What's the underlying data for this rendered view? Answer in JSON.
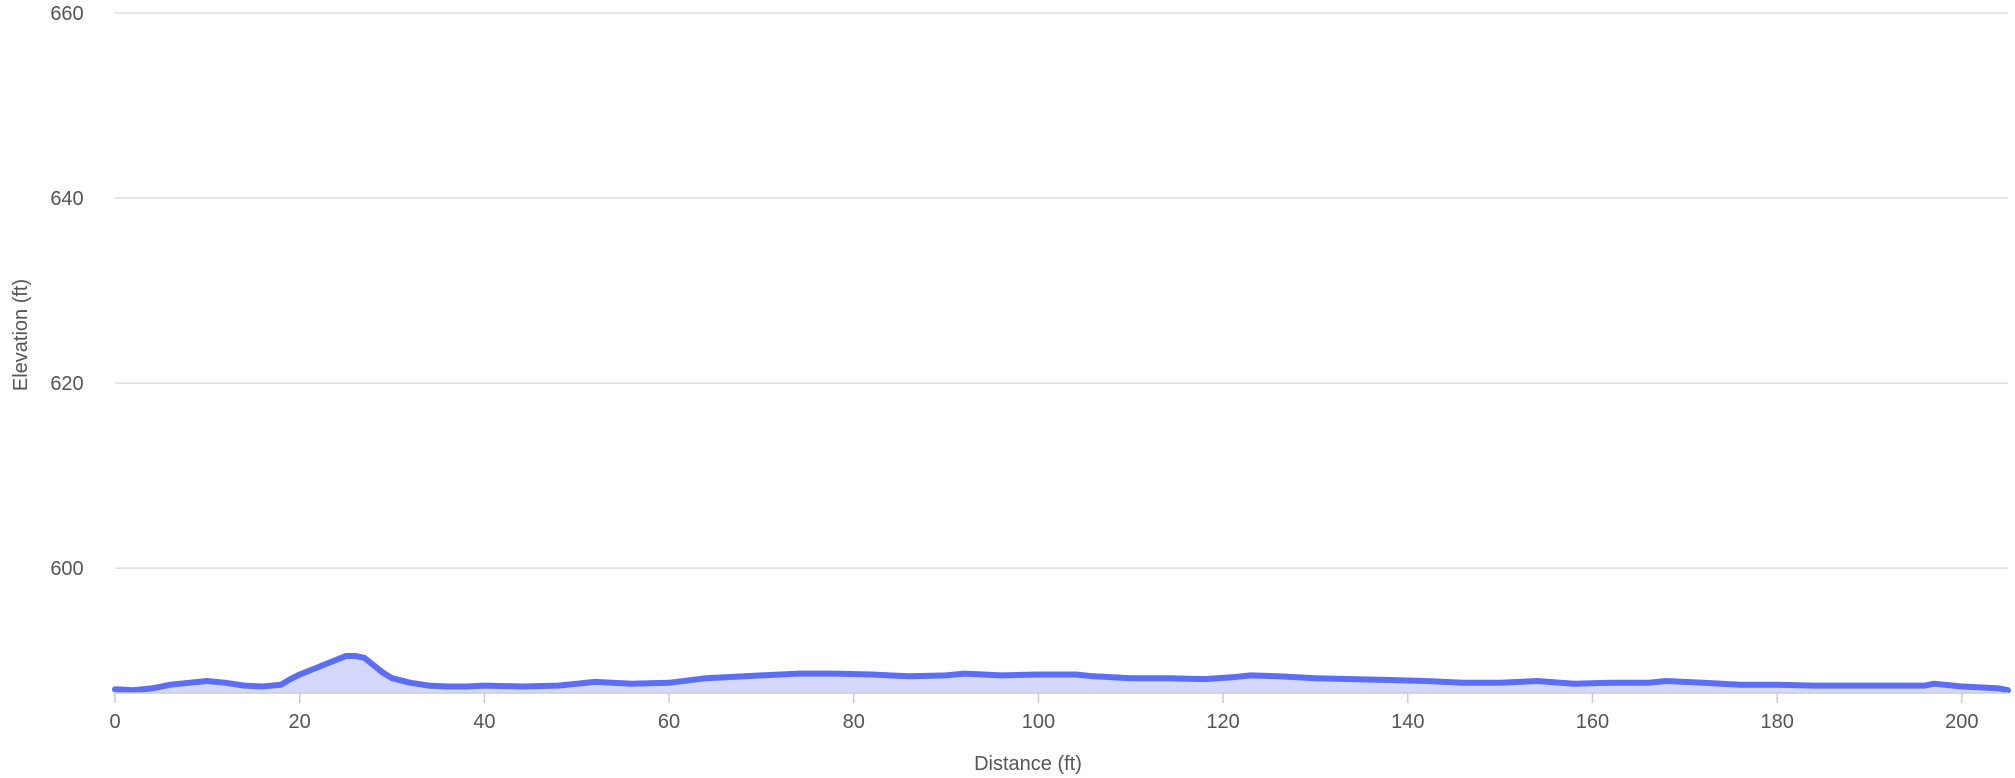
{
  "chart_data": {
    "type": "area",
    "xlabel": "Distance (ft)",
    "ylabel": "Elevation (ft)",
    "xlim": [
      0,
      205
    ],
    "ylim": [
      586.5,
      660
    ],
    "x_ticks": [
      0,
      20,
      40,
      60,
      80,
      100,
      120,
      140,
      160,
      180,
      200
    ],
    "y_ticks": [
      600,
      620,
      640,
      660
    ],
    "grid": true,
    "legend": "none",
    "colors": {
      "line": "#5b6ef5",
      "fill": "#d3d8fc"
    },
    "series": [
      {
        "x": [
          0,
          2,
          4,
          6,
          8,
          10,
          12,
          14,
          16,
          18,
          19,
          20,
          22,
          24,
          25,
          26,
          27,
          28,
          29,
          30,
          32,
          34,
          36,
          38,
          40,
          44,
          48,
          52,
          56,
          60,
          64,
          70,
          74,
          78,
          82,
          86,
          90,
          92,
          96,
          100,
          104,
          106,
          110,
          114,
          118,
          121,
          123,
          126,
          130,
          134,
          138,
          142,
          146,
          150,
          154,
          158,
          162,
          166,
          168,
          172,
          176,
          180,
          184,
          188,
          192,
          196,
          197,
          200,
          202,
          204,
          205
        ],
        "y": [
          586.9,
          586.8,
          587.0,
          587.4,
          587.6,
          587.8,
          587.6,
          587.3,
          587.2,
          587.4,
          588.0,
          588.5,
          589.3,
          590.1,
          590.5,
          590.5,
          590.3,
          589.5,
          588.7,
          588.1,
          587.6,
          587.3,
          587.2,
          587.2,
          587.3,
          587.2,
          587.3,
          587.7,
          587.5,
          587.6,
          588.1,
          588.4,
          588.6,
          588.6,
          588.5,
          588.3,
          588.4,
          588.6,
          588.4,
          588.5,
          588.5,
          588.3,
          588.1,
          588.1,
          588.0,
          588.2,
          588.4,
          588.3,
          588.1,
          588.0,
          587.9,
          587.8,
          587.6,
          587.6,
          587.8,
          587.5,
          587.6,
          587.6,
          587.8,
          587.6,
          587.4,
          587.4,
          587.3,
          587.3,
          587.3,
          587.3,
          587.5,
          587.2,
          587.1,
          587.0,
          586.8
        ]
      }
    ]
  }
}
